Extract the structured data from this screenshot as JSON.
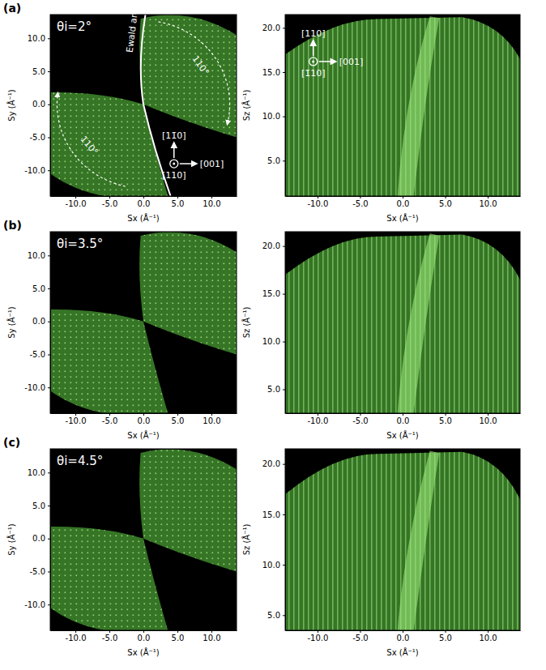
{
  "chart_data": [
    {
      "type": "image",
      "panel_label": "(a)",
      "x_label": "Sx (Å⁻¹)",
      "y_label": "Sy (Å⁻¹)",
      "color": "#3e8a2c",
      "xlim": [
        -13.7,
        13.7
      ],
      "ylim": [
        -13.9,
        13.6
      ],
      "xticks": [
        {
          "value": -10,
          "label": "-10.0"
        },
        {
          "value": -5,
          "label": "-5.0"
        },
        {
          "value": 0,
          "label": "0.0"
        },
        {
          "value": 5,
          "label": "5.0"
        },
        {
          "value": 10,
          "label": "10.0"
        }
      ],
      "yticks": [
        {
          "value": -10,
          "label": "-10.0"
        },
        {
          "value": -5,
          "label": "-5.0"
        },
        {
          "value": 0,
          "label": "0.0"
        },
        {
          "value": 5,
          "label": "5.0"
        },
        {
          "value": 10,
          "label": "10.0"
        }
      ],
      "annotations": {
        "angle": "θi=2°",
        "arc": "Ewald arc",
        "rotation": [
          "110°",
          "110°"
        ],
        "up": "[11̄0]",
        "right": "[001]",
        "normal": "[110]"
      }
    },
    {
      "type": "image",
      "x_label": "Sx (Å⁻¹)",
      "y_label": "Sz (Å⁻¹)",
      "color": "#3e8a2c",
      "xlim": [
        -13.8,
        13.8
      ],
      "ylim": [
        1.0,
        21.5
      ],
      "xticks": [
        {
          "value": -10,
          "label": "-10.0"
        },
        {
          "value": -5,
          "label": "-5.0"
        },
        {
          "value": 0,
          "label": "0.0"
        },
        {
          "value": 5,
          "label": "5.0"
        },
        {
          "value": 10,
          "label": "10.0"
        }
      ],
      "yticks": [
        {
          "value": 5,
          "label": "5.0"
        },
        {
          "value": 10,
          "label": "10.0"
        },
        {
          "value": 15,
          "label": "15.0"
        },
        {
          "value": 20,
          "label": "20.0"
        }
      ],
      "annotations": {
        "up": "[110]",
        "right": "[001]",
        "normal": "[1̄10]"
      }
    },
    {
      "type": "image",
      "panel_label": "(b)",
      "x_label": "Sx (Å⁻¹)",
      "y_label": "Sy (Å⁻¹)",
      "color": "#3e8a2c",
      "xlim": [
        -13.7,
        13.7
      ],
      "ylim": [
        -13.9,
        13.6
      ],
      "xticks": [
        {
          "value": -10,
          "label": "-10.0"
        },
        {
          "value": -5,
          "label": "-5.0"
        },
        {
          "value": 0,
          "label": "0.0"
        },
        {
          "value": 5,
          "label": "5.0"
        },
        {
          "value": 10,
          "label": "10.0"
        }
      ],
      "yticks": [
        {
          "value": -10,
          "label": "-10.0"
        },
        {
          "value": -5,
          "label": "-5.0"
        },
        {
          "value": 0,
          "label": "0.0"
        },
        {
          "value": 5,
          "label": "5.0"
        },
        {
          "value": 10,
          "label": "10.0"
        }
      ],
      "annotations": {
        "angle": "θi=3.5°"
      }
    },
    {
      "type": "image",
      "x_label": "Sx (Å⁻¹)",
      "y_label": "Sz (Å⁻¹)",
      "color": "#3e8a2c",
      "xlim": [
        -13.8,
        13.8
      ],
      "ylim": [
        2.5,
        21.5
      ],
      "xticks": [
        {
          "value": -10,
          "label": "-10.0"
        },
        {
          "value": -5,
          "label": "-5.0"
        },
        {
          "value": 0,
          "label": "0.0"
        },
        {
          "value": 5,
          "label": "5.0"
        },
        {
          "value": 10,
          "label": "10.0"
        }
      ],
      "yticks": [
        {
          "value": 5,
          "label": "5.0"
        },
        {
          "value": 10,
          "label": "10.0"
        },
        {
          "value": 15,
          "label": "15.0"
        },
        {
          "value": 20,
          "label": "20.0"
        }
      ]
    },
    {
      "type": "image",
      "panel_label": "(c)",
      "x_label": "Sx (Å⁻¹)",
      "y_label": "Sy (Å⁻¹)",
      "color": "#3e8a2c",
      "xlim": [
        -13.7,
        13.7
      ],
      "ylim": [
        -13.9,
        13.6
      ],
      "xticks": [
        {
          "value": -10,
          "label": "-10.0"
        },
        {
          "value": -5,
          "label": "-5.0"
        },
        {
          "value": 0,
          "label": "0.0"
        },
        {
          "value": 5,
          "label": "5.0"
        },
        {
          "value": 10,
          "label": "10.0"
        }
      ],
      "yticks": [
        {
          "value": -10,
          "label": "-10.0"
        },
        {
          "value": -5,
          "label": "-5.0"
        },
        {
          "value": 0,
          "label": "0.0"
        },
        {
          "value": 5,
          "label": "5.0"
        },
        {
          "value": 10,
          "label": "10.0"
        }
      ],
      "annotations": {
        "angle": "θi=4.5°"
      }
    },
    {
      "type": "image",
      "x_label": "Sx (Å⁻¹)",
      "y_label": "Sz (Å⁻¹)",
      "color": "#3e8a2c",
      "xlim": [
        -13.8,
        13.8
      ],
      "ylim": [
        3.5,
        21.5
      ],
      "xticks": [
        {
          "value": -10,
          "label": "-10.0"
        },
        {
          "value": -5,
          "label": "-5.0"
        },
        {
          "value": 0,
          "label": "0.0"
        },
        {
          "value": 5,
          "label": "5.0"
        },
        {
          "value": 10,
          "label": "10.0"
        }
      ],
      "yticks": [
        {
          "value": 5,
          "label": "5.0"
        },
        {
          "value": 10,
          "label": "10.0"
        },
        {
          "value": 15,
          "label": "15.0"
        },
        {
          "value": 20,
          "label": "20.0"
        }
      ]
    }
  ]
}
